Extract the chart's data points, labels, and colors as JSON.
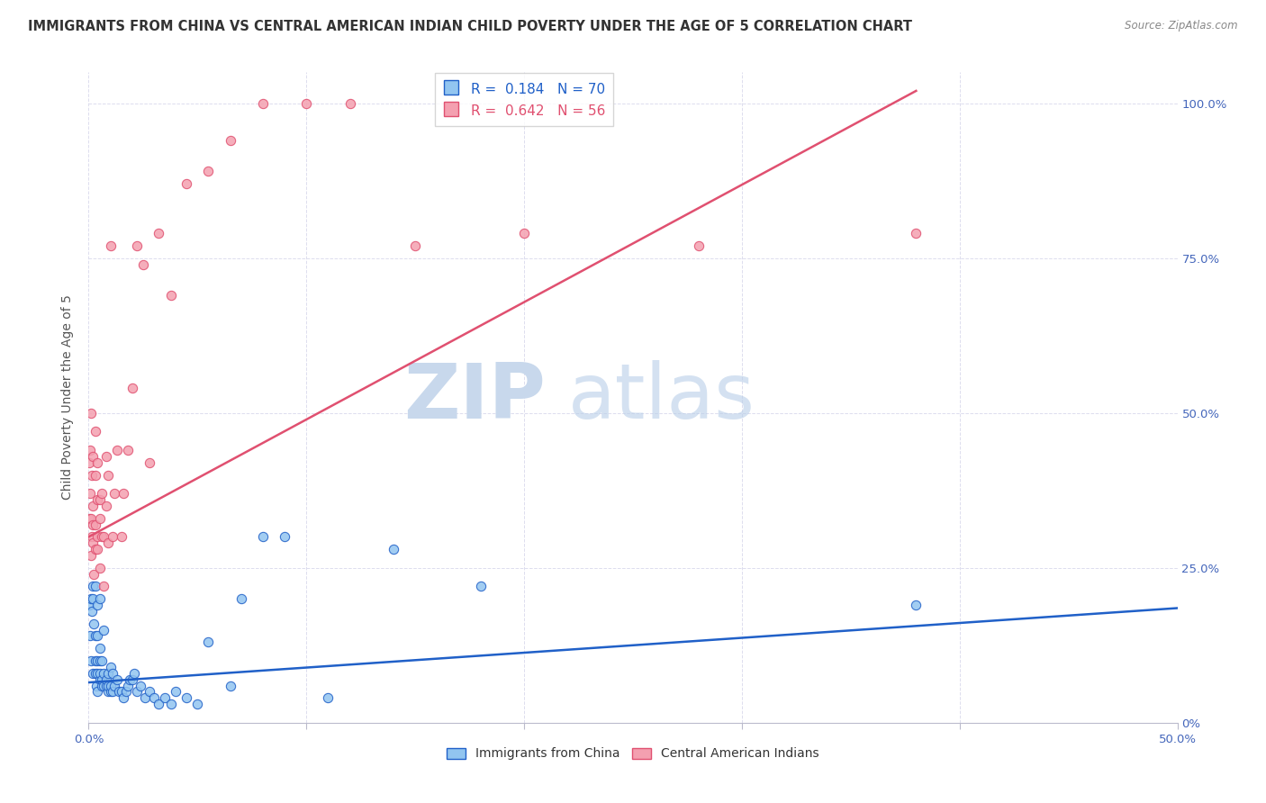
{
  "title": "IMMIGRANTS FROM CHINA VS CENTRAL AMERICAN INDIAN CHILD POVERTY UNDER THE AGE OF 5 CORRELATION CHART",
  "source": "Source: ZipAtlas.com",
  "ylabel": "Child Poverty Under the Age of 5",
  "color_blue": "#92c5f0",
  "color_pink": "#f4a0b0",
  "color_line_blue": "#2060c8",
  "color_line_pink": "#e05070",
  "watermark_zip": "ZIP",
  "watermark_atlas": "atlas",
  "xlim": [
    0.0,
    0.5
  ],
  "ylim": [
    0.0,
    1.05
  ],
  "xticks": [
    0.0,
    0.1,
    0.2,
    0.3,
    0.4,
    0.5
  ],
  "yticks": [
    0.0,
    0.25,
    0.5,
    0.75,
    1.0
  ],
  "right_ytick_labels": [
    "0%",
    "25.0%",
    "50.0%",
    "75.0%",
    "100.0%"
  ],
  "bottom_xtick_labels": [
    "0.0%",
    "",
    "",
    "",
    "",
    "50.0%"
  ],
  "legend1_label": "R =  0.184   N = 70",
  "legend2_label": "R =  0.642   N = 56",
  "legend1_color": "#2060c8",
  "legend2_color": "#e05070",
  "bottom_legend_labels": [
    "Immigrants from China",
    "Central American Indians"
  ],
  "china_x": [
    0.0004,
    0.0006,
    0.001,
    0.0012,
    0.0015,
    0.002,
    0.002,
    0.002,
    0.0025,
    0.003,
    0.003,
    0.003,
    0.003,
    0.0035,
    0.004,
    0.004,
    0.004,
    0.004,
    0.004,
    0.005,
    0.005,
    0.005,
    0.005,
    0.005,
    0.006,
    0.006,
    0.006,
    0.007,
    0.007,
    0.007,
    0.008,
    0.008,
    0.009,
    0.009,
    0.009,
    0.01,
    0.01,
    0.01,
    0.011,
    0.011,
    0.012,
    0.013,
    0.014,
    0.015,
    0.016,
    0.017,
    0.018,
    0.019,
    0.02,
    0.021,
    0.022,
    0.024,
    0.026,
    0.028,
    0.03,
    0.032,
    0.035,
    0.038,
    0.04,
    0.045,
    0.05,
    0.055,
    0.065,
    0.07,
    0.08,
    0.09,
    0.11,
    0.14,
    0.18,
    0.38
  ],
  "china_y": [
    0.19,
    0.14,
    0.2,
    0.1,
    0.18,
    0.22,
    0.08,
    0.2,
    0.16,
    0.14,
    0.1,
    0.22,
    0.08,
    0.06,
    0.05,
    0.08,
    0.1,
    0.14,
    0.19,
    0.07,
    0.08,
    0.1,
    0.12,
    0.2,
    0.06,
    0.07,
    0.1,
    0.06,
    0.08,
    0.15,
    0.06,
    0.07,
    0.05,
    0.06,
    0.08,
    0.05,
    0.06,
    0.09,
    0.05,
    0.08,
    0.06,
    0.07,
    0.05,
    0.05,
    0.04,
    0.05,
    0.06,
    0.07,
    0.07,
    0.08,
    0.05,
    0.06,
    0.04,
    0.05,
    0.04,
    0.03,
    0.04,
    0.03,
    0.05,
    0.04,
    0.03,
    0.13,
    0.06,
    0.2,
    0.3,
    0.3,
    0.04,
    0.28,
    0.22,
    0.19
  ],
  "indian_x": [
    0.0002,
    0.0003,
    0.0005,
    0.0007,
    0.001,
    0.001,
    0.0012,
    0.0015,
    0.0015,
    0.002,
    0.002,
    0.002,
    0.002,
    0.0025,
    0.003,
    0.003,
    0.003,
    0.003,
    0.004,
    0.004,
    0.004,
    0.004,
    0.005,
    0.005,
    0.005,
    0.006,
    0.006,
    0.007,
    0.007,
    0.008,
    0.008,
    0.009,
    0.009,
    0.01,
    0.011,
    0.012,
    0.013,
    0.015,
    0.016,
    0.018,
    0.02,
    0.022,
    0.025,
    0.028,
    0.032,
    0.038,
    0.045,
    0.055,
    0.065,
    0.08,
    0.1,
    0.12,
    0.15,
    0.2,
    0.28,
    0.38
  ],
  "indian_y": [
    0.33,
    0.42,
    0.44,
    0.37,
    0.33,
    0.5,
    0.27,
    0.4,
    0.3,
    0.32,
    0.35,
    0.43,
    0.29,
    0.24,
    0.28,
    0.32,
    0.4,
    0.47,
    0.28,
    0.3,
    0.36,
    0.42,
    0.25,
    0.33,
    0.36,
    0.3,
    0.37,
    0.22,
    0.3,
    0.35,
    0.43,
    0.29,
    0.4,
    0.77,
    0.3,
    0.37,
    0.44,
    0.3,
    0.37,
    0.44,
    0.54,
    0.77,
    0.74,
    0.42,
    0.79,
    0.69,
    0.87,
    0.89,
    0.94,
    1.0,
    1.0,
    1.0,
    0.77,
    0.79,
    0.77,
    0.79
  ],
  "blue_trend_x0": 0.0,
  "blue_trend_y0": 0.065,
  "blue_trend_x1": 0.5,
  "blue_trend_y1": 0.185,
  "pink_trend_x0": 0.0,
  "pink_trend_y0": 0.3,
  "pink_trend_x1": 0.38,
  "pink_trend_y1": 1.02
}
